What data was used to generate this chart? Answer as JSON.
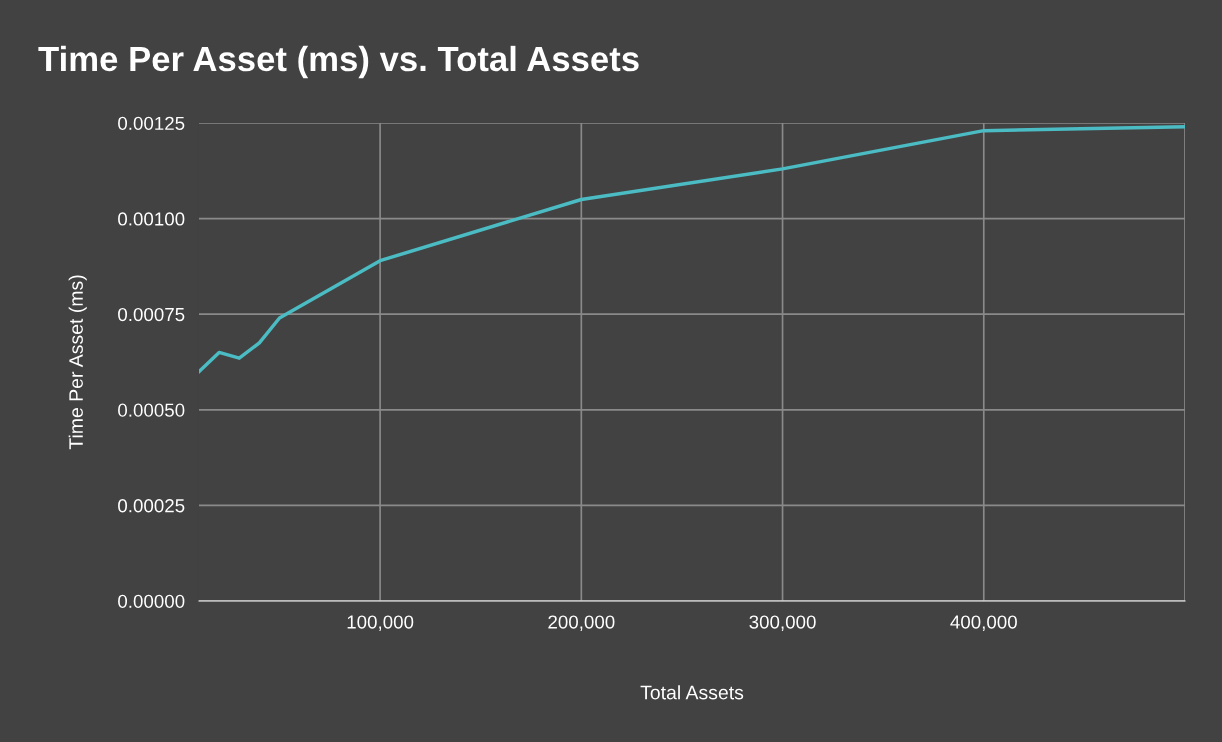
{
  "chart_data": {
    "type": "line",
    "title": "Time Per Asset (ms) vs. Total Assets",
    "xlabel": "Total Assets",
    "ylabel": "Time Per Asset (ms)",
    "x": [
      10000,
      20000,
      30000,
      40000,
      50000,
      100000,
      200000,
      300000,
      400000,
      500000
    ],
    "series": [
      {
        "color": "#4bbcc4",
        "values": [
          0.0006,
          0.00065,
          0.000635,
          0.000675,
          0.00074,
          0.00089,
          0.00105,
          0.00113,
          0.00123,
          0.00124
        ]
      }
    ],
    "xlim": [
      10000,
      500000
    ],
    "xticks": [
      {
        "value": 100000,
        "label": "100,000"
      },
      {
        "value": 200000,
        "label": "200,000"
      },
      {
        "value": 300000,
        "label": "300,000"
      },
      {
        "value": 400000,
        "label": "400,000"
      }
    ],
    "ylim": [
      0,
      0.00125
    ],
    "yticks": [
      {
        "value": 0,
        "label": "0.00000"
      },
      {
        "value": 0.00025,
        "label": "0.00025"
      },
      {
        "value": 0.0005,
        "label": "0.00050"
      },
      {
        "value": 0.00075,
        "label": "0.00075"
      },
      {
        "value": 0.001,
        "label": "0.00100"
      },
      {
        "value": 0.00125,
        "label": "0.00125"
      }
    ],
    "grid": true,
    "marker": "none",
    "line_style": "solid",
    "legend": false
  }
}
